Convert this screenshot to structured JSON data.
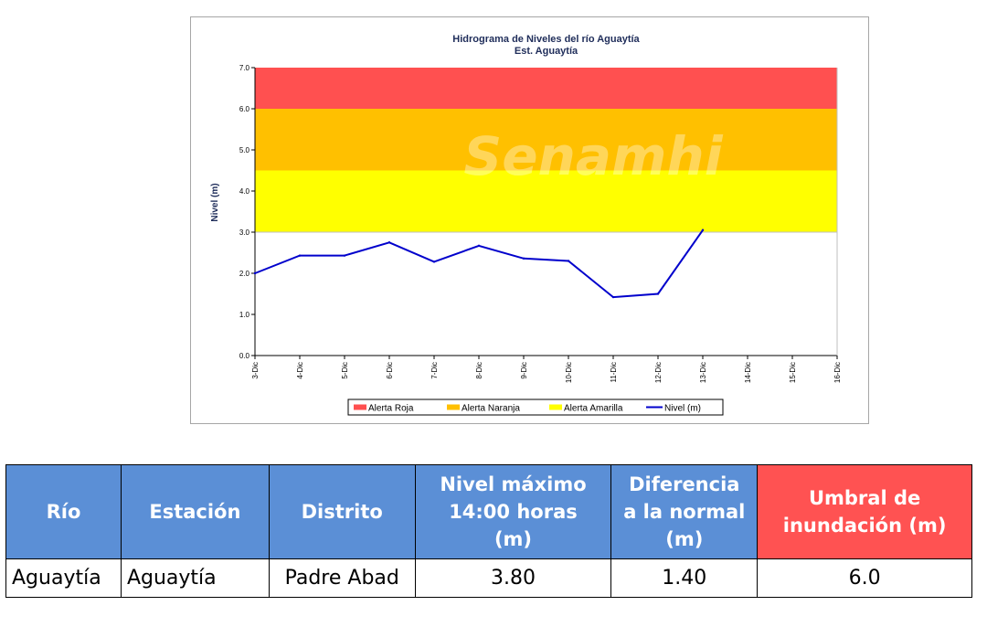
{
  "chart_data": {
    "type": "line",
    "title": "Hidrograma de Niveles del río Aguaytía",
    "subtitle": "Est. Aguaytía",
    "ylabel": "Nivel (m)",
    "ylim": [
      0,
      7
    ],
    "yticks": [
      "0.0",
      "1.0",
      "2.0",
      "3.0",
      "4.0",
      "5.0",
      "6.0",
      "7.0"
    ],
    "categories": [
      "3-Dic",
      "4-Dic",
      "5-Dic",
      "6-Dic",
      "7-Dic",
      "8-Dic",
      "9-Dic",
      "10-Dic",
      "11-Dic",
      "12-Dic",
      "13-Dic",
      "14-Dic",
      "15-Dic",
      "16-Dic"
    ],
    "series": [
      {
        "name": "Nivel (m)",
        "color": "#0000cc",
        "values": [
          2.0,
          2.43,
          2.43,
          2.75,
          2.28,
          2.67,
          2.36,
          2.3,
          1.42,
          1.5,
          3.05,
          null,
          null,
          null
        ]
      }
    ],
    "bands": [
      {
        "name": "Alerta Roja",
        "color": "#ff5050",
        "from": 6.0,
        "to": 7.0
      },
      {
        "name": "Alerta Naranja",
        "color": "#ffc000",
        "from": 4.5,
        "to": 6.0
      },
      {
        "name": "Alerta Amarilla",
        "color": "#ffff00",
        "from": 3.0,
        "to": 4.5
      }
    ],
    "legend_position": "bottom",
    "grid": false,
    "watermark": "Senamhi"
  },
  "table": {
    "headers": {
      "rio": "Río",
      "estacion": "Estación",
      "distrito": "Distrito",
      "nivel_line1": "Nivel máximo",
      "nivel_line2": "14:00 horas",
      "nivel_line3": "(m)",
      "dif_line1": "Diferencia",
      "dif_line2": "a la normal",
      "dif_line3": "(m)",
      "umbral_line1": "Umbral de",
      "umbral_line2": "inundación (m)"
    },
    "row": {
      "rio": "Aguaytía",
      "estacion": "Aguaytía",
      "distrito": "Padre Abad",
      "nivel_maximo": "3.80",
      "diferencia": "1.40",
      "umbral": "6.0"
    }
  }
}
